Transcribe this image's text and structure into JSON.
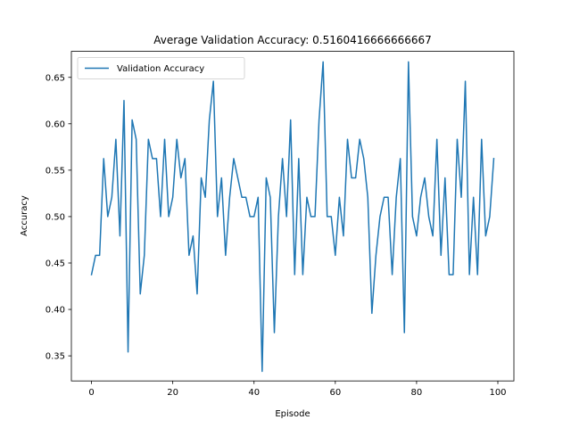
{
  "chart_data": {
    "type": "line",
    "title": "Average Validation Accuracy: 0.5160416666666667",
    "xlabel": "Episode",
    "ylabel": "Accuracy",
    "xlim": [
      -4.95,
      103.95
    ],
    "ylim": [
      0.323,
      0.678
    ],
    "xticks": [
      0,
      20,
      40,
      60,
      80,
      100
    ],
    "yticks": [
      0.35,
      0.4,
      0.45,
      0.5,
      0.55,
      0.6,
      0.65
    ],
    "ytick_labels": [
      "0.35",
      "0.40",
      "0.45",
      "0.50",
      "0.55",
      "0.60",
      "0.65"
    ],
    "grid": false,
    "legend": {
      "position": "top-left"
    },
    "series": [
      {
        "name": "Validation Accuracy",
        "color": "#1f77b4",
        "x": [
          0,
          1,
          2,
          3,
          4,
          5,
          6,
          7,
          8,
          9,
          10,
          11,
          12,
          13,
          14,
          15,
          16,
          17,
          18,
          19,
          20,
          21,
          22,
          23,
          24,
          25,
          26,
          27,
          28,
          29,
          30,
          31,
          32,
          33,
          34,
          35,
          36,
          37,
          38,
          39,
          40,
          41,
          42,
          43,
          44,
          45,
          46,
          47,
          48,
          49,
          50,
          51,
          52,
          53,
          54,
          55,
          56,
          57,
          58,
          59,
          60,
          61,
          62,
          63,
          64,
          65,
          66,
          67,
          68,
          69,
          70,
          71,
          72,
          73,
          74,
          75,
          76,
          77,
          78,
          79,
          80,
          81,
          82,
          83,
          84,
          85,
          86,
          87,
          88,
          89,
          90,
          91,
          92,
          93,
          94,
          95,
          96,
          97,
          98,
          99
        ],
        "values": [
          0.4375,
          0.4583,
          0.4583,
          0.5625,
          0.5,
          0.5208,
          0.5833,
          0.4792,
          0.625,
          0.3542,
          0.6042,
          0.5833,
          0.4167,
          0.4583,
          0.5833,
          0.5625,
          0.5625,
          0.5,
          0.5833,
          0.5,
          0.5208,
          0.5833,
          0.5417,
          0.5625,
          0.4583,
          0.4792,
          0.4167,
          0.5417,
          0.5208,
          0.6042,
          0.6458,
          0.5,
          0.5417,
          0.4583,
          0.5208,
          0.5625,
          0.5417,
          0.5208,
          0.5208,
          0.5,
          0.5,
          0.5208,
          0.3333,
          0.5417,
          0.5208,
          0.375,
          0.5,
          0.5625,
          0.5,
          0.6042,
          0.4375,
          0.5625,
          0.4375,
          0.5208,
          0.5,
          0.5,
          0.6042,
          0.6667,
          0.5,
          0.5,
          0.4583,
          0.5208,
          0.4792,
          0.5833,
          0.5417,
          0.5417,
          0.5833,
          0.5625,
          0.5208,
          0.3958,
          0.4583,
          0.5,
          0.5208,
          0.5208,
          0.4375,
          0.5208,
          0.5625,
          0.375,
          0.6667,
          0.5,
          0.4792,
          0.5208,
          0.5417,
          0.5,
          0.4792,
          0.5833,
          0.4583,
          0.5417,
          0.4375,
          0.4375,
          0.5833,
          0.5208,
          0.6458,
          0.4375,
          0.5208,
          0.4375,
          0.5833,
          0.4792,
          0.5,
          0.5625
        ]
      }
    ]
  }
}
